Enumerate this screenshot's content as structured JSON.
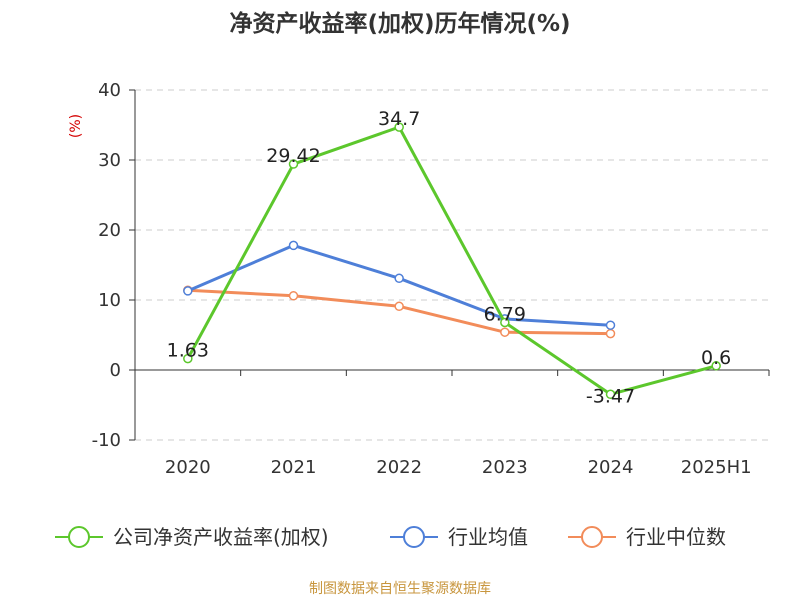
{
  "title": "净资产收益率(加权)历年情况(%)",
  "source": "制图数据来自恒生聚源数据库",
  "chart_data": {
    "type": "line",
    "title": "净资产收益率(加权)历年情况(%)",
    "ylabel": "(%)",
    "xlabel": "",
    "categories": [
      "2020",
      "2021",
      "2022",
      "2023",
      "2024",
      "2025H1"
    ],
    "ylim": [
      -10,
      40
    ],
    "yticks": [
      -10,
      0,
      10,
      20,
      30,
      40
    ],
    "grid": true,
    "legend_position": "bottom",
    "series": [
      {
        "name": "公司净资产收益率(加权)",
        "color": "#5cc72c",
        "values": [
          1.63,
          29.42,
          34.7,
          6.79,
          -3.47,
          0.6
        ],
        "labels": true
      },
      {
        "name": "行业均值",
        "color": "#4e7fd8",
        "values": [
          11.3,
          17.8,
          13.1,
          7.3,
          6.4,
          null
        ],
        "labels": false
      },
      {
        "name": "行业中位数",
        "color": "#f28c5a",
        "values": [
          11.4,
          10.6,
          9.1,
          5.4,
          5.2,
          null
        ],
        "labels": false
      }
    ]
  }
}
